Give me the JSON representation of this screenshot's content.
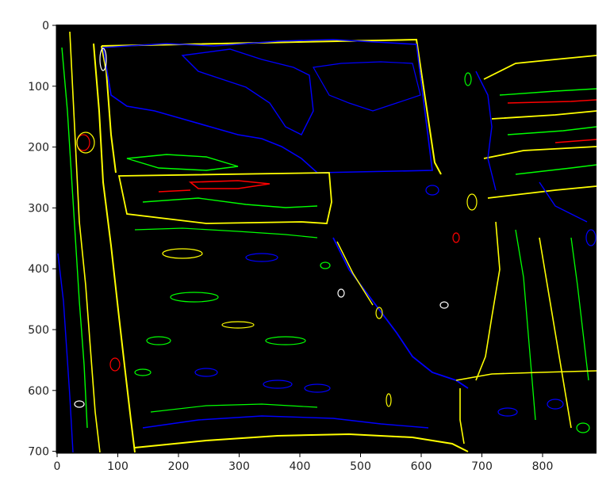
{
  "figure": {
    "background": "#ffffff",
    "image_background": "#000000",
    "contour_colors": {
      "red": "#ff0000",
      "green": "#00ff00",
      "blue": "#0000ff",
      "yellow": "#ffff00",
      "white": "#ffffff"
    }
  },
  "axes": {
    "x_ticks": [
      "0",
      "100",
      "200",
      "300",
      "400",
      "500",
      "600",
      "700",
      "800"
    ],
    "y_ticks": [
      "0",
      "100",
      "200",
      "300",
      "400",
      "500",
      "600",
      "700"
    ]
  }
}
